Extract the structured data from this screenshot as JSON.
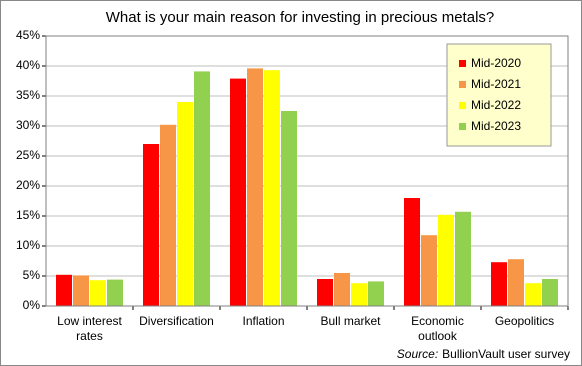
{
  "chart_data": {
    "type": "bar",
    "title": "What is your main reason for investing in precious metals?",
    "categories": [
      "Low interest rates",
      "Diversification",
      "Inflation",
      "Bull market",
      "Economic outlook",
      "Geopolitics"
    ],
    "series": [
      {
        "name": "Mid-2020",
        "color": "#ff0000",
        "values": [
          5.2,
          27.0,
          37.9,
          4.5,
          18.0,
          7.3
        ]
      },
      {
        "name": "Mid-2021",
        "color": "#f79646",
        "values": [
          5.1,
          30.2,
          39.6,
          5.5,
          11.8,
          7.8
        ]
      },
      {
        "name": "Mid-2022",
        "color": "#ffff00",
        "values": [
          4.3,
          34.0,
          39.3,
          3.8,
          15.2,
          3.8
        ]
      },
      {
        "name": "Mid-2023",
        "color": "#92d050",
        "values": [
          4.4,
          39.1,
          32.5,
          4.1,
          15.7,
          4.5
        ]
      }
    ],
    "ylim": [
      0,
      45
    ],
    "yticks": [
      {
        "value": 0,
        "label": "0%"
      },
      {
        "value": 5,
        "label": "5%"
      },
      {
        "value": 10,
        "label": "10%"
      },
      {
        "value": 15,
        "label": "15%"
      },
      {
        "value": 20,
        "label": "20%"
      },
      {
        "value": 25,
        "label": "25%"
      },
      {
        "value": 30,
        "label": "30%"
      },
      {
        "value": 35,
        "label": "35%"
      },
      {
        "value": 40,
        "label": "40%"
      },
      {
        "value": 45,
        "label": "45%"
      }
    ],
    "grid": true,
    "legend": "top-right",
    "source_label": "Source:",
    "source": "BullionVault user survey"
  }
}
